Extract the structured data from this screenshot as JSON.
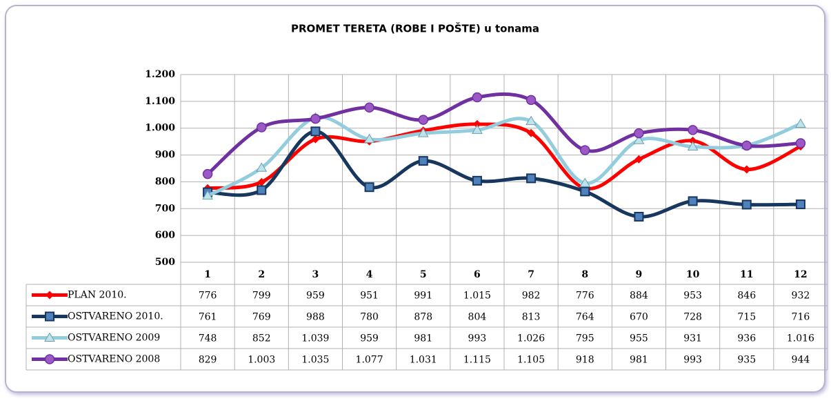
{
  "chart_data": {
    "type": "line",
    "title": "PROMET TERETA  (ROBE I POŠTE) u tonama",
    "categories": [
      "1",
      "2",
      "3",
      "4",
      "5",
      "6",
      "7",
      "8",
      "9",
      "10",
      "11",
      "12"
    ],
    "ylim": [
      500,
      1200
    ],
    "yticks": [
      500,
      600,
      700,
      800,
      900,
      {
        "value": 1000,
        "label": "1.000"
      },
      {
        "value": 1100,
        "label": "1.100"
      },
      {
        "value": 1200,
        "label": "1.200"
      }
    ],
    "grid": true,
    "series": [
      {
        "name": "PLAN 2010.",
        "color": "#ff0000",
        "marker": "diamond",
        "values": [
          776,
          799,
          959,
          951,
          991,
          1015,
          982,
          776,
          884,
          953,
          846,
          932
        ],
        "value_labels": [
          "776",
          "799",
          "959",
          "951",
          "991",
          "1.015",
          "982",
          "776",
          "884",
          "953",
          "846",
          "932"
        ]
      },
      {
        "name": "OSTVARENO 2010.",
        "color": "#17375e",
        "marker": "square",
        "values": [
          761,
          769,
          988,
          780,
          878,
          804,
          813,
          764,
          670,
          728,
          715,
          716
        ],
        "value_labels": [
          "761",
          "769",
          "988",
          "780",
          "878",
          "804",
          "813",
          "764",
          "670",
          "728",
          "715",
          "716"
        ]
      },
      {
        "name": "OSTVARENO 2009",
        "color": "#93cddd",
        "marker": "triangle",
        "values": [
          748,
          852,
          1039,
          959,
          981,
          993,
          1026,
          795,
          955,
          931,
          936,
          1016
        ],
        "value_labels": [
          "748",
          "852",
          "1.039",
          "959",
          "981",
          "993",
          "1.026",
          "795",
          "955",
          "931",
          "936",
          "1.016"
        ]
      },
      {
        "name": "OSTVARENO 2008",
        "color": "#7030a0",
        "marker": "circle",
        "values": [
          829,
          1003,
          1035,
          1077,
          1031,
          1115,
          1105,
          918,
          981,
          993,
          935,
          944
        ],
        "value_labels": [
          "829",
          "1.003",
          "1.035",
          "1.077",
          "1.031",
          "1.115",
          "1.105",
          "918",
          "981",
          "993",
          "935",
          "944"
        ]
      }
    ]
  }
}
